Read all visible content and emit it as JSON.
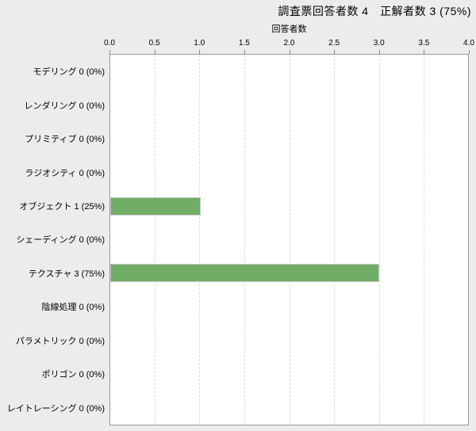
{
  "chart_data": {
    "type": "bar",
    "orientation": "horizontal",
    "title": "調査票回答者数 4　正解者数 3 (75%)",
    "xlabel": "回答者数",
    "xlim": [
      0,
      4
    ],
    "xticks": [
      "0.0",
      "0.5",
      "1.0",
      "1.5",
      "2.0",
      "2.5",
      "3.0",
      "3.5",
      "4.0"
    ],
    "categories": [
      "モデリング",
      "レンダリング",
      "プリミティブ",
      "ラジオシティ",
      "オブジェクト",
      "シェーディング",
      "テクスチャ",
      "陰線処理",
      "パラメトリック",
      "ポリゴン",
      "レイトレーシング"
    ],
    "values": [
      0,
      0,
      0,
      0,
      1,
      0,
      3,
      0,
      0,
      0,
      0
    ],
    "percents": [
      "0%",
      "0%",
      "0%",
      "0%",
      "25%",
      "0%",
      "75%",
      "0%",
      "0%",
      "0%",
      "0%"
    ],
    "row_labels": [
      "モデリング 0 (0%)",
      "レンダリング 0 (0%)",
      "プリミティブ 0 (0%)",
      "ラジオシティ 0 (0%)",
      "オブジェクト 1 (25%)",
      "シェーディング 0 (0%)",
      "テクスチャ 3 (75%)",
      "陰線処理 0 (0%)",
      "パラメトリック 0 (0%)",
      "ポリゴン 0 (0%)",
      "レイトレーシング 0 (0%)"
    ],
    "grid": "vertical-dashed",
    "legend": "none",
    "colors": {
      "page_bg": "#ececec",
      "plot_bg": "#ffffff",
      "plot_border": "#979797",
      "grid": "#d9d9d9",
      "tick": "#8c8c8c",
      "bar_fill": "#72ad68",
      "bar_border": "#c6c6c6",
      "text": "#000000"
    }
  }
}
